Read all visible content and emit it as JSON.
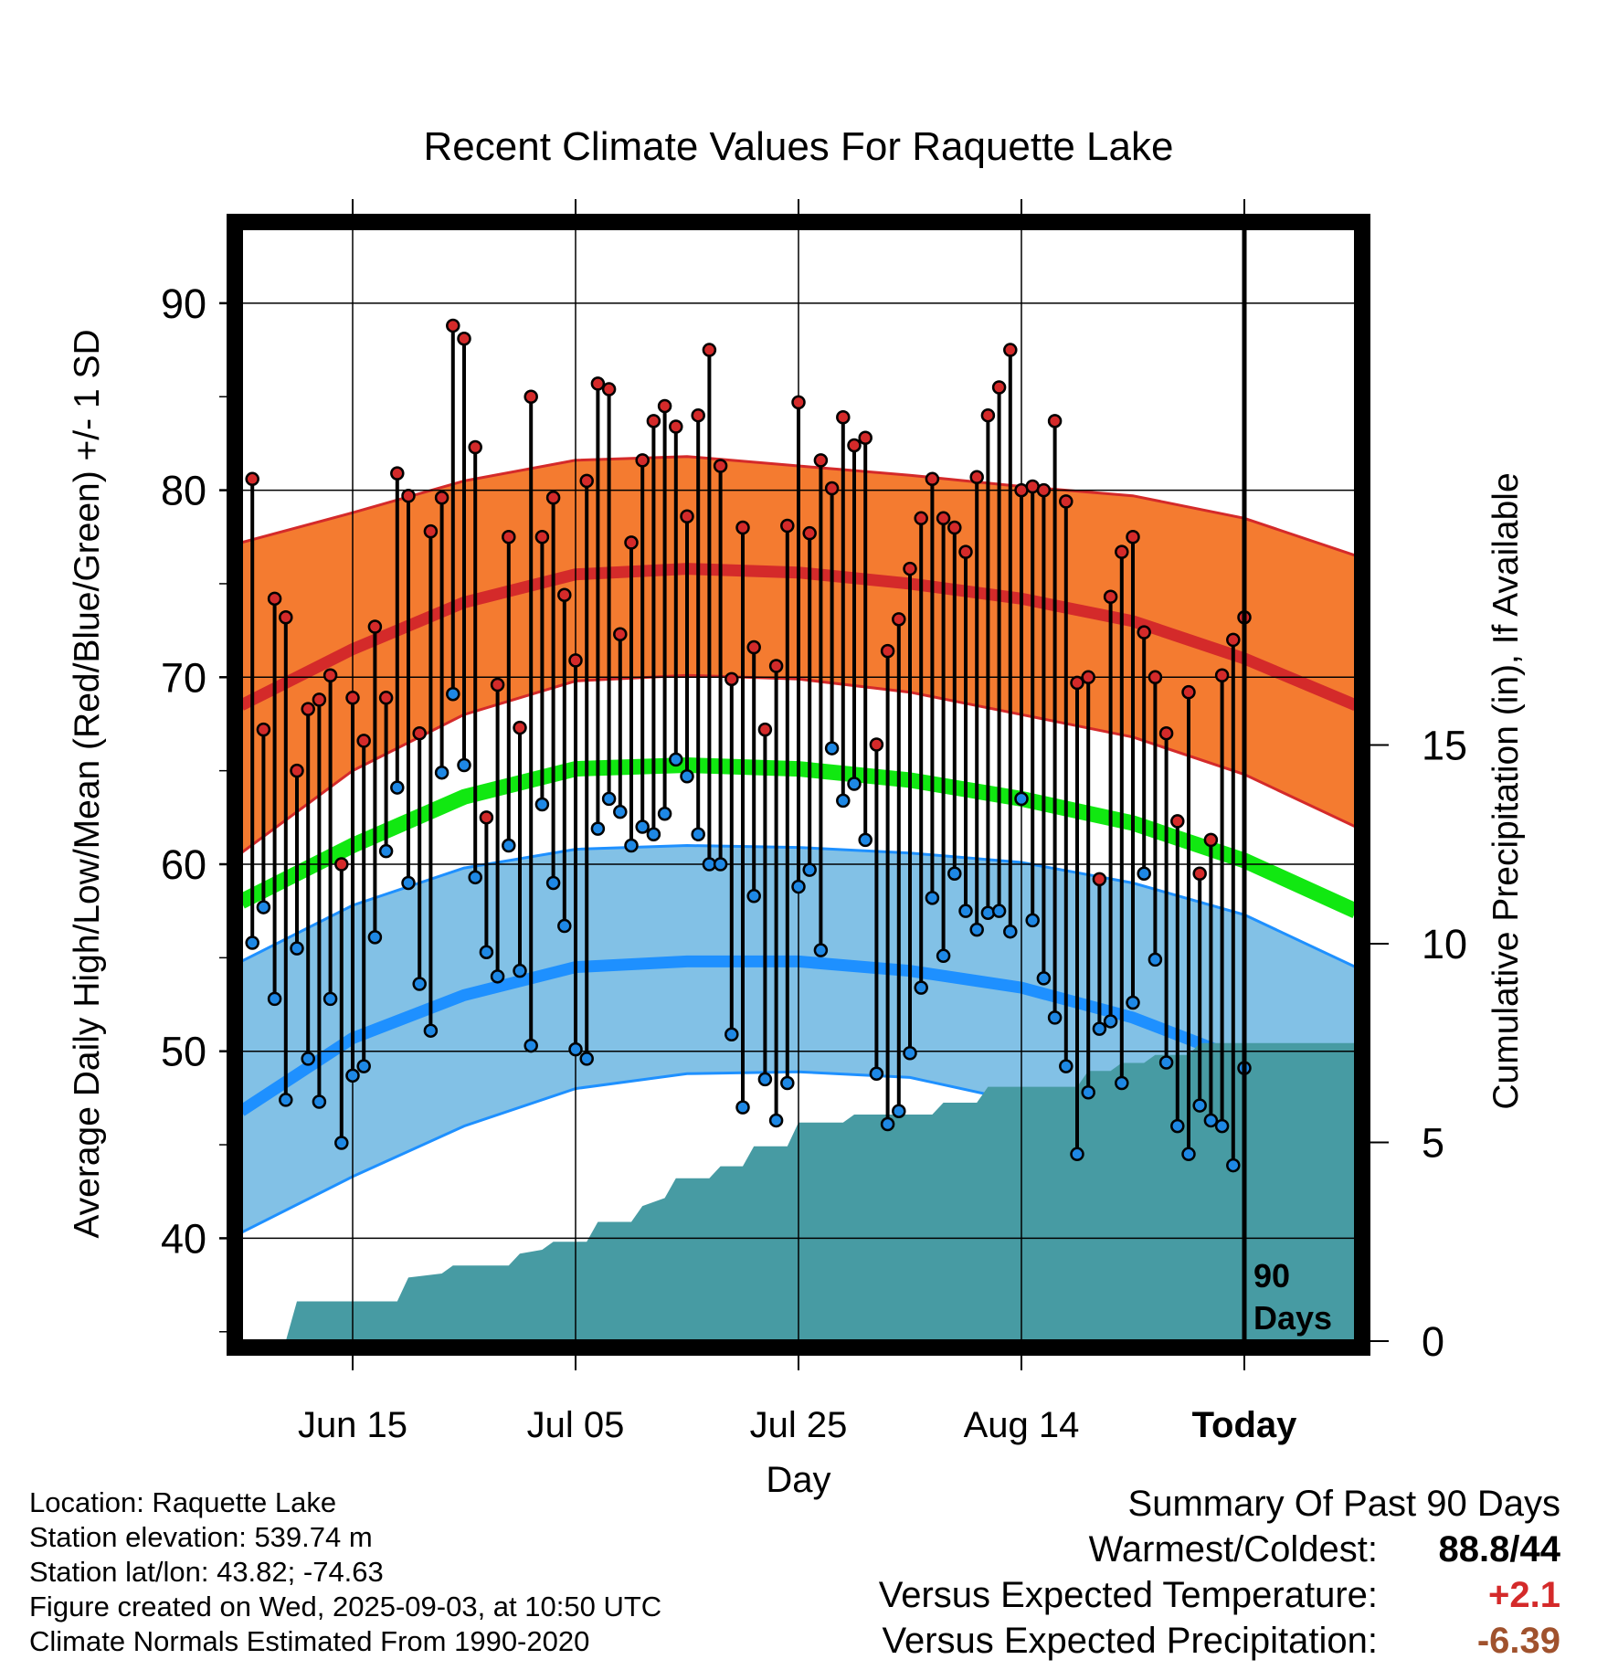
{
  "colors": {
    "high_band": "#f47b30",
    "high_line": "#d42a2a",
    "low_band": "#82c1e6",
    "low_line": "#1e90ff",
    "mean_line": "#11e811",
    "precip_fill": "#479ba3",
    "warm_dot": "#d42a2a",
    "cool_dot": "#1e88e5",
    "positive_value": "#d42a2a",
    "negative_value": "#a0522d"
  },
  "chart_data": {
    "type": "line",
    "title": "Recent Climate Values For Raquette Lake",
    "xlabel": "Day",
    "ylabel": "Average Daily High/Low/Mean (Red/Blue/Green) +/- 1 SD",
    "y2label": "Cumulative Precipitation (in), If Available",
    "x_range_days": [
      -90,
      10
    ],
    "x_unit": "days relative to today",
    "ylim": [
      34.5,
      94
    ],
    "y2lim": [
      0,
      28
    ],
    "y_ticks": [
      40,
      50,
      60,
      70,
      80,
      90
    ],
    "y2_ticks": [
      0,
      5,
      10,
      15
    ],
    "x_ticks": [
      {
        "label": "Jun 15",
        "day": -80
      },
      {
        "label": "Jul 05",
        "day": -60
      },
      {
        "label": "Jul 25",
        "day": -40
      },
      {
        "label": "Aug 14",
        "day": -20
      },
      {
        "label": "Today",
        "day": 0
      }
    ],
    "grid": true,
    "today_marker": "90\nDays",
    "normals": {
      "days": [
        -90,
        -80,
        -70,
        -60,
        -50,
        -40,
        -30,
        -20,
        -10,
        0,
        10
      ],
      "high_mean": [
        68.5,
        71.5,
        74.0,
        75.5,
        75.8,
        75.6,
        75.0,
        74.2,
        73.0,
        71.0,
        68.5
      ],
      "high_upper": [
        77.2,
        78.8,
        80.5,
        81.6,
        81.8,
        81.3,
        80.8,
        80.2,
        79.7,
        78.5,
        76.5
      ],
      "high_lower": [
        60.6,
        65.0,
        68.0,
        69.8,
        70.1,
        69.9,
        69.2,
        68.0,
        66.8,
        64.8,
        62.0
      ],
      "mean": [
        58.0,
        61.0,
        63.6,
        65.1,
        65.3,
        65.1,
        64.5,
        63.5,
        62.2,
        60.2,
        57.5
      ],
      "low_mean": [
        46.8,
        50.7,
        53.0,
        54.5,
        54.8,
        54.8,
        54.3,
        53.4,
        51.8,
        49.5,
        46.5
      ],
      "low_upper": [
        54.8,
        57.8,
        59.8,
        60.8,
        61.0,
        60.9,
        60.6,
        60.1,
        59.0,
        57.3,
        54.5
      ],
      "low_lower": [
        40.3,
        43.3,
        46.0,
        48.0,
        48.8,
        48.9,
        48.6,
        47.3,
        45.2,
        42.0,
        38.0
      ]
    },
    "daily": {
      "days": [
        -89,
        -88,
        -87,
        -86,
        -85,
        -84,
        -83,
        -82,
        -81,
        -80,
        -79,
        -78,
        -77,
        -76,
        -75,
        -74,
        -73,
        -72,
        -71,
        -70,
        -69,
        -68,
        -67,
        -66,
        -65,
        -64,
        -63,
        -62,
        -61,
        -60,
        -59,
        -58,
        -57,
        -56,
        -55,
        -54,
        -53,
        -52,
        -51,
        -50,
        -49,
        -48,
        -47,
        -46,
        -45,
        -44,
        -43,
        -42,
        -41,
        -40,
        -39,
        -38,
        -37,
        -36,
        -35,
        -34,
        -33,
        -32,
        -31,
        -30,
        -29,
        -28,
        -27,
        -26,
        -25,
        -24,
        -23,
        -22,
        -21,
        -20,
        -19,
        -18,
        -17,
        -16,
        -15,
        -14,
        -13,
        -12,
        -11,
        -10,
        -9,
        -8,
        -7,
        -6,
        -5,
        -4,
        -3,
        -2,
        -1,
        0
      ],
      "high": [
        80.6,
        67.2,
        74.2,
        73.2,
        65.0,
        68.3,
        68.8,
        70.1,
        60.0,
        68.9,
        66.6,
        72.7,
        68.9,
        80.9,
        79.7,
        67.0,
        77.8,
        79.6,
        88.8,
        88.1,
        82.3,
        62.5,
        69.6,
        77.5,
        67.3,
        85.0,
        77.5,
        79.6,
        74.4,
        70.9,
        80.5,
        85.7,
        85.4,
        72.3,
        77.2,
        81.6,
        83.7,
        84.5,
        83.4,
        78.6,
        84.0,
        87.5,
        81.3,
        69.9,
        78.0,
        71.6,
        67.2,
        70.6,
        78.1,
        84.7,
        77.7,
        81.6,
        80.1,
        83.9,
        82.4,
        82.8,
        66.4,
        71.4,
        73.1,
        75.8,
        78.5,
        80.6,
        78.5,
        78.0,
        76.7,
        80.7,
        84.0,
        85.5,
        87.5,
        80.0,
        80.2,
        80.0,
        83.7,
        79.4,
        69.7,
        70.0,
        59.2,
        74.3,
        76.7,
        77.5,
        72.4,
        70.0,
        67.0,
        62.3,
        69.2,
        59.5,
        61.3,
        70.1,
        72.0,
        73.2
      ],
      "low": [
        55.8,
        57.7,
        52.8,
        47.4,
        55.5,
        49.6,
        47.3,
        52.8,
        45.1,
        48.7,
        49.2,
        56.1,
        60.7,
        64.1,
        59.0,
        53.6,
        51.1,
        64.9,
        69.1,
        65.3,
        59.3,
        55.3,
        54.0,
        61.0,
        54.3,
        50.3,
        63.2,
        59.0,
        56.7,
        50.1,
        49.6,
        61.9,
        63.5,
        62.8,
        61.0,
        62.0,
        61.6,
        62.7,
        65.6,
        64.7,
        61.6,
        60.0,
        60.0,
        50.9,
        47.0,
        58.3,
        48.5,
        46.3,
        48.3,
        58.8,
        59.7,
        55.4,
        66.2,
        63.4,
        64.3,
        61.3,
        48.8,
        46.1,
        46.8,
        49.9,
        53.4,
        58.2,
        55.1,
        59.5,
        57.5,
        56.5,
        57.4,
        57.5,
        56.4,
        63.5,
        57.0,
        53.9,
        51.8,
        49.2,
        44.5,
        47.8,
        51.2,
        51.6,
        48.3,
        52.6,
        59.5,
        54.9,
        49.4,
        46.0,
        44.5,
        47.1,
        46.3,
        46.0,
        43.9,
        49.1
      ]
    },
    "precip": {
      "days": [
        -90,
        -86,
        -85,
        -76,
        -75,
        -72,
        -71,
        -66,
        -65,
        -63,
        -62,
        -59,
        -58,
        -55,
        -54,
        -52,
        -51,
        -48,
        -47,
        -45,
        -44,
        -41,
        -40,
        -36,
        -35,
        -28,
        -27,
        -24,
        -23,
        -15,
        -14,
        -12,
        -11,
        -9,
        -8,
        -5,
        -4,
        0,
        10
      ],
      "total": [
        0.0,
        0.0,
        1.0,
        1.0,
        1.6,
        1.7,
        1.9,
        1.9,
        2.2,
        2.3,
        2.5,
        2.5,
        3.0,
        3.0,
        3.4,
        3.6,
        4.1,
        4.1,
        4.4,
        4.4,
        4.9,
        4.9,
        5.5,
        5.5,
        5.7,
        5.7,
        6.0,
        6.0,
        6.4,
        6.4,
        6.8,
        6.8,
        7.0,
        7.0,
        7.2,
        7.2,
        7.5,
        7.5,
        7.5
      ]
    }
  },
  "footer": {
    "location": "Location: Raquette Lake",
    "elevation": "Station elevation: 539.74 m",
    "latlon": "Station lat/lon: 43.82; -74.63",
    "created": "Figure created on Wed, 2025-09-03, at 10:50 UTC",
    "normals": "Climate Normals Estimated From 1990-2020"
  },
  "summary": {
    "title": "Summary Of Past 90 Days",
    "warmest_label": "Warmest/Coldest:",
    "warmest_value": "88.8/44",
    "temp_label": "Versus Expected Temperature:",
    "temp_value": "+2.1",
    "precip_label": "Versus Expected Precipitation:",
    "precip_value": "-6.39"
  }
}
